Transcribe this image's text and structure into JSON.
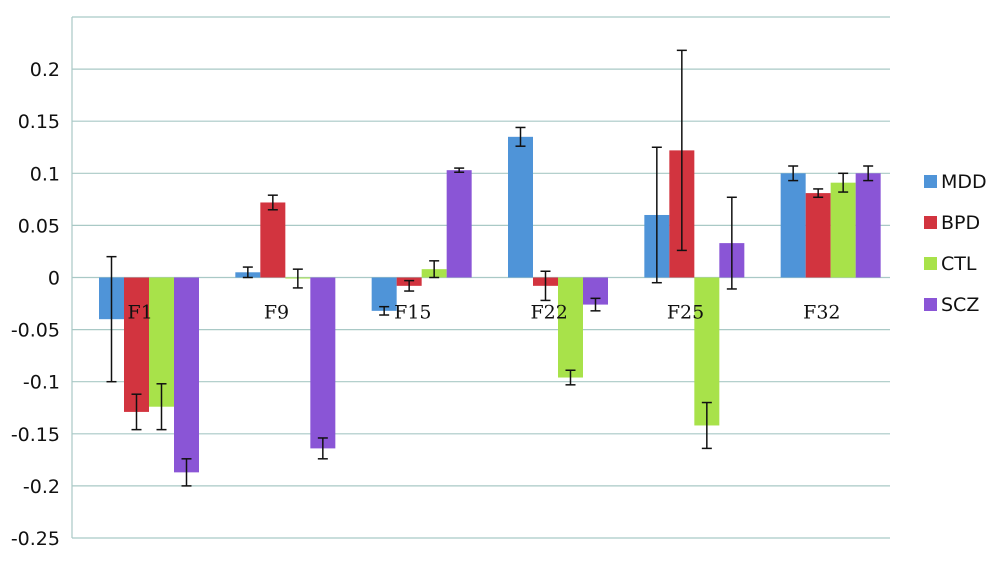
{
  "chart_data": {
    "type": "bar",
    "title": "",
    "xlabel": "",
    "ylabel": "",
    "categories": [
      "F1",
      "F9",
      "F15",
      "F22",
      "F25",
      "F32"
    ],
    "ylim": [
      -0.25,
      0.25
    ],
    "yticks": [
      0.2,
      0.15,
      0.1,
      0.05,
      0,
      -0.05,
      -0.1,
      -0.15,
      -0.2,
      -0.25
    ],
    "ytick_labels": [
      "0.2",
      "0.15",
      "0.1",
      "0.05",
      "0",
      "-0.05",
      "-0.1",
      "-0.15",
      "-0.2",
      "-0.25"
    ],
    "grid": true,
    "legend_position": "right",
    "series": [
      {
        "name": "MDD",
        "color": "#4F94D8",
        "values": [
          -0.04,
          0.005,
          -0.032,
          0.135,
          0.06,
          0.1
        ],
        "errors": [
          0.06,
          0.005,
          0.004,
          0.009,
          0.065,
          0.007
        ]
      },
      {
        "name": "BPD",
        "color": "#D2343F",
        "values": [
          -0.129,
          0.072,
          -0.008,
          -0.008,
          0.122,
          0.081
        ],
        "errors": [
          0.017,
          0.007,
          0.005,
          0.014,
          0.096,
          0.004
        ]
      },
      {
        "name": "CTL",
        "color": "#A8E24A",
        "values": [
          -0.124,
          -0.001,
          0.008,
          -0.096,
          -0.142,
          0.091
        ],
        "errors": [
          0.022,
          0.009,
          0.008,
          0.007,
          0.022,
          0.009
        ]
      },
      {
        "name": "SCZ",
        "color": "#8A55D6",
        "values": [
          -0.187,
          -0.164,
          0.103,
          -0.026,
          0.033,
          0.1
        ],
        "errors": [
          0.013,
          0.01,
          0.002,
          0.006,
          0.044,
          0.007
        ]
      }
    ]
  }
}
